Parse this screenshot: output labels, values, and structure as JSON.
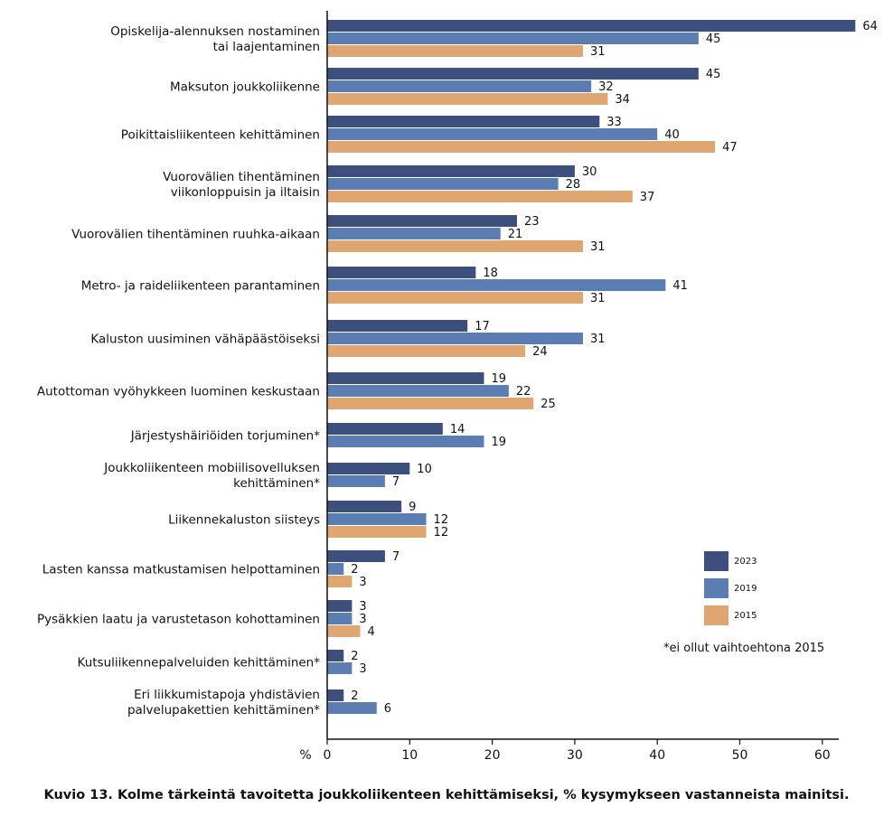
{
  "chart_data": {
    "type": "bar",
    "orientation": "horizontal",
    "categories": [
      [
        "Opiskelija-alennuksen nostaminen",
        "tai laajentaminen"
      ],
      [
        "Maksuton joukkoliikenne"
      ],
      [
        "Poikittaisliikenteen kehittäminen"
      ],
      [
        "Vuorovälien tihentäminen",
        "viikonloppuisin ja iltaisin"
      ],
      [
        "Vuorovälien tihentäminen ruuhka-aikaan"
      ],
      [
        "Metro- ja raideliikenteen parantaminen"
      ],
      [
        "Kaluston uusiminen vähäpäästöiseksi"
      ],
      [
        "Autottoman vyöhykkeen luominen keskustaan"
      ],
      [
        "Järjestyshäiriöiden torjuminen*"
      ],
      [
        "Joukkoliikenteen mobiilisovelluksen",
        "kehittäminen*"
      ],
      [
        "Liikennekaluston siisteys"
      ],
      [
        "Lasten kanssa matkustamisen helpottaminen"
      ],
      [
        "Pysäkkien laatu ja varustetason kohottaminen"
      ],
      [
        "Kutsuliikennepalveluiden kehittäminen*"
      ],
      [
        "Eri liikkumistapoja yhdistävien",
        "palvelupakettien kehittäminen*"
      ]
    ],
    "series": [
      {
        "name": "2023",
        "color": "#3d4f7c",
        "values": [
          64,
          45,
          33,
          30,
          23,
          18,
          17,
          19,
          14,
          10,
          9,
          7,
          3,
          2,
          2
        ]
      },
      {
        "name": "2019",
        "color": "#5b7db1",
        "values": [
          45,
          32,
          40,
          28,
          21,
          41,
          31,
          22,
          19,
          7,
          12,
          2,
          3,
          3,
          6
        ]
      },
      {
        "name": "2015",
        "color": "#e0a672",
        "values": [
          31,
          34,
          47,
          37,
          31,
          31,
          24,
          25,
          null,
          null,
          12,
          3,
          4,
          null,
          null
        ]
      }
    ],
    "xlim": [
      0,
      62
    ],
    "xticks": [
      0,
      10,
      20,
      30,
      40,
      50,
      60
    ],
    "xlabel": "%",
    "legend_position": "right",
    "grid": false
  },
  "note": "*ei ollut vaihtoehtona 2015",
  "caption": "Kuvio 13. Kolme tärkeintä tavoitetta joukkoliikenteen kehittämiseksi, % kysymykseen vastanneista mainitsi."
}
